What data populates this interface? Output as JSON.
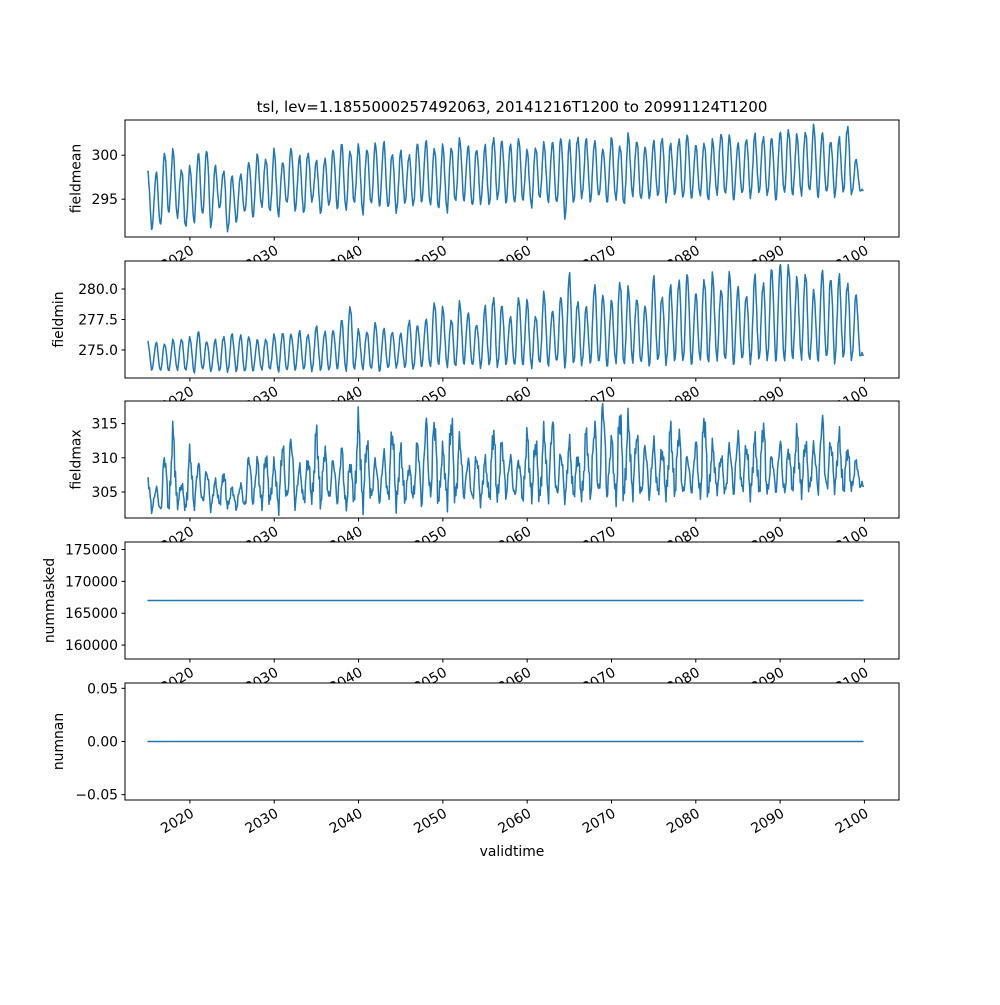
{
  "chart_data": {
    "type": "line",
    "title": "tsl, lev=1.1855000257492063, 20141216T1200 to 20991124T1200",
    "xlabel": "validtime",
    "x_start_year": 2015,
    "x_ticks": [
      2020,
      2030,
      2040,
      2050,
      2060,
      2070,
      2080,
      2090,
      2100
    ],
    "xlim": [
      2012.3,
      2104.1
    ],
    "line_color": "#1f77b4",
    "note": "seasonal series given as annual peak/trough values per year starting at x_start_year",
    "panels": [
      {
        "ylabel": "fieldmean",
        "ylim": [
          290.7,
          304.0
        ],
        "y_ticks": [
          "295",
          "300"
        ],
        "y_tick_values": [
          295,
          300
        ],
        "annual_peak": [
          298.2,
          298.0,
          300.3,
          300.5,
          298.4,
          298.6,
          300.2,
          300.6,
          298.7,
          298.2,
          297.6,
          297.8,
          299.2,
          300.0,
          299.6,
          300.5,
          299.2,
          300.8,
          299.8,
          300.3,
          299.3,
          299.6,
          300.6,
          301.2,
          300.5,
          301.0,
          300.7,
          301.3,
          301.4,
          300.2,
          300.4,
          300.0,
          301.3,
          301.6,
          300.8,
          301.0,
          300.9,
          301.8,
          301.0,
          300.7,
          301.0,
          302.0,
          301.6,
          301.2,
          301.9,
          300.5,
          300.9,
          301.3,
          301.5,
          302.0,
          301.5,
          302.1,
          301.8,
          301.6,
          300.7,
          301.9,
          301.1,
          302.2,
          301.6,
          300.9,
          301.5,
          302.0,
          301.2,
          301.8,
          302.3,
          301.1,
          301.4,
          301.6,
          302.5,
          302.2,
          301.3,
          301.9,
          302.3,
          302.1,
          301.9,
          302.6,
          302.9,
          302.2,
          302.7,
          303.3,
          302.5,
          301.6,
          301.9,
          303.3,
          299.5
        ],
        "annual_trough": [
          291.7,
          292.0,
          293.5,
          293.0,
          291.8,
          292.5,
          293.2,
          292.0,
          294.0,
          291.4,
          292.5,
          293.5,
          293.0,
          294.2,
          293.6,
          293.2,
          294.5,
          293.8,
          293.4,
          294.8,
          293.5,
          294.2,
          294.0,
          293.8,
          294.6,
          293.5,
          294.4,
          294.3,
          294.0,
          293.6,
          294.6,
          294.2,
          294.8,
          294.3,
          294.0,
          293.7,
          294.7,
          294.9,
          294.2,
          294.6,
          294.4,
          295.0,
          294.7,
          294.5,
          294.9,
          294.2,
          295.1,
          294.8,
          294.5,
          293.0,
          294.6,
          295.2,
          294.8,
          295.3,
          294.7,
          295.0,
          294.4,
          295.5,
          294.9,
          295.2,
          295.3,
          294.8,
          295.6,
          295.1,
          295.2,
          295.4,
          294.9,
          295.7,
          295.5,
          295.0,
          295.6,
          295.3,
          295.8,
          295.4,
          295.0,
          295.7,
          295.5,
          295.6,
          295.9,
          295.3,
          295.7,
          295.4,
          295.8,
          295.6,
          296.0
        ]
      },
      {
        "ylabel": "fieldmin",
        "ylim": [
          272.7,
          282.3
        ],
        "y_ticks": [
          "275.0",
          "277.5",
          "280.0"
        ],
        "y_tick_values": [
          275.0,
          277.5,
          280.0
        ],
        "annual_peak": [
          275.7,
          275.6,
          275.5,
          275.8,
          275.9,
          276.0,
          276.5,
          275.7,
          275.8,
          276.1,
          276.3,
          276.2,
          276.1,
          275.8,
          275.9,
          276.2,
          276.4,
          276.3,
          276.5,
          276.3,
          276.9,
          276.5,
          276.6,
          277.4,
          278.6,
          276.6,
          276.5,
          277.2,
          276.7,
          276.5,
          276.3,
          277.4,
          277.0,
          277.5,
          278.9,
          278.4,
          277.5,
          278.9,
          278.0,
          277.1,
          278.5,
          279.3,
          278.6,
          277.7,
          279.3,
          279.0,
          277.8,
          279.6,
          278.2,
          279.4,
          281.1,
          279.0,
          278.5,
          280.3,
          279.5,
          279.0,
          280.6,
          280.0,
          279.2,
          278.6,
          280.9,
          279.4,
          280.2,
          280.7,
          281.2,
          279.6,
          280.8,
          281.1,
          280.0,
          281.3,
          280.1,
          279.5,
          281.0,
          280.5,
          281.6,
          282.0,
          282.0,
          280.8,
          281.3,
          279.8,
          281.5,
          280.9,
          281.0,
          280.5,
          279.5
        ],
        "annual_trough": [
          273.4,
          273.3,
          273.3,
          273.4,
          273.3,
          273.2,
          273.4,
          273.3,
          273.3,
          273.2,
          273.3,
          273.2,
          273.3,
          273.4,
          273.4,
          273.3,
          273.3,
          273.4,
          273.4,
          273.3,
          273.4,
          273.3,
          273.5,
          273.3,
          273.4,
          273.5,
          273.4,
          273.3,
          273.5,
          273.6,
          273.6,
          273.4,
          273.7,
          273.6,
          273.8,
          273.7,
          273.6,
          273.9,
          273.7,
          273.6,
          273.8,
          273.6,
          273.9,
          273.7,
          273.8,
          273.6,
          273.9,
          273.8,
          274.0,
          273.7,
          273.9,
          273.8,
          274.0,
          273.9,
          273.7,
          274.0,
          273.8,
          274.1,
          273.9,
          273.8,
          274.1,
          273.9,
          274.2,
          274.0,
          273.9,
          274.2,
          274.0,
          274.3,
          274.1,
          273.9,
          274.2,
          274.0,
          274.3,
          274.1,
          274.2,
          274.0,
          274.3,
          274.4,
          274.1,
          274.2,
          274.3,
          274.1,
          274.4,
          274.2,
          274.6
        ]
      },
      {
        "ylabel": "fieldmax",
        "ylim": [
          301.2,
          318.3
        ],
        "y_ticks": [
          "305",
          "310",
          "315"
        ],
        "y_tick_values": [
          305,
          310,
          315
        ],
        "annual_peak": [
          307.0,
          305.5,
          310.0,
          313.5,
          306.0,
          310.5,
          309.0,
          308.0,
          306.5,
          307.5,
          305.5,
          306.0,
          310.0,
          309.5,
          310.0,
          309.0,
          311.5,
          312.5,
          308.5,
          309.5,
          313.5,
          311.0,
          309.5,
          311.0,
          309.0,
          315.0,
          312.0,
          309.5,
          310.5,
          313.5,
          311.0,
          308.5,
          312.0,
          315.0,
          315.0,
          311.0,
          315.0,
          312.5,
          309.5,
          310.0,
          309.5,
          313.5,
          312.0,
          310.0,
          309.5,
          313.0,
          312.0,
          313.5,
          315.0,
          310.5,
          312.0,
          310.0,
          313.5,
          314.5,
          317.5,
          312.5,
          316.0,
          315.0,
          313.0,
          311.5,
          312.0,
          311.0,
          314.0,
          313.5,
          310.0,
          312.0,
          315.5,
          311.5,
          310.0,
          311.5,
          313.0,
          311.5,
          312.5,
          314.5,
          310.0,
          312.0,
          311.0,
          313.5,
          312.0,
          311.5,
          315.5,
          312.0,
          313.0,
          311.0,
          309.5
        ],
        "annual_trough": [
          302.5,
          302.3,
          302.8,
          303.0,
          302.6,
          303.2,
          303.5,
          302.8,
          303.4,
          303.0,
          302.7,
          302.9,
          303.6,
          303.3,
          303.8,
          303.2,
          304.0,
          303.5,
          303.8,
          304.0,
          303.7,
          304.1,
          303.8,
          302.8,
          304.0,
          303.5,
          304.2,
          303.9,
          304.3,
          303.6,
          304.0,
          304.2,
          303.8,
          304.5,
          303.9,
          304.3,
          304.1,
          304.6,
          304.0,
          303.8,
          304.5,
          304.2,
          304.8,
          304.4,
          304.1,
          304.6,
          304.3,
          304.9,
          304.5,
          304.2,
          304.7,
          304.3,
          304.9,
          304.6,
          305.0,
          304.4,
          304.8,
          305.1,
          304.5,
          304.7,
          305.0,
          304.6,
          305.2,
          304.8,
          305.3,
          304.7,
          305.1,
          305.4,
          304.9,
          305.2,
          305.3,
          304.8,
          305.5,
          305.0,
          305.4,
          304.9,
          305.6,
          305.2,
          305.5,
          305.7,
          305.4,
          305.8,
          305.5,
          305.6,
          306.0
        ]
      },
      {
        "ylabel": "nummasked",
        "ylim": [
          157815,
          176185
        ],
        "y_ticks": [
          "160000",
          "165000",
          "170000",
          "175000"
        ],
        "y_tick_values": [
          160000,
          165000,
          170000,
          175000
        ],
        "constant_value": 167000
      },
      {
        "ylabel": "numnan",
        "ylim": [
          -0.055,
          0.055
        ],
        "y_ticks": [
          "−0.05",
          "0.00",
          "0.05"
        ],
        "y_tick_values": [
          -0.05,
          0.0,
          0.05
        ],
        "constant_value": 0
      }
    ],
    "x_range_data": [
      2014.96,
      2099.9
    ],
    "grid": false,
    "legend": "none"
  }
}
